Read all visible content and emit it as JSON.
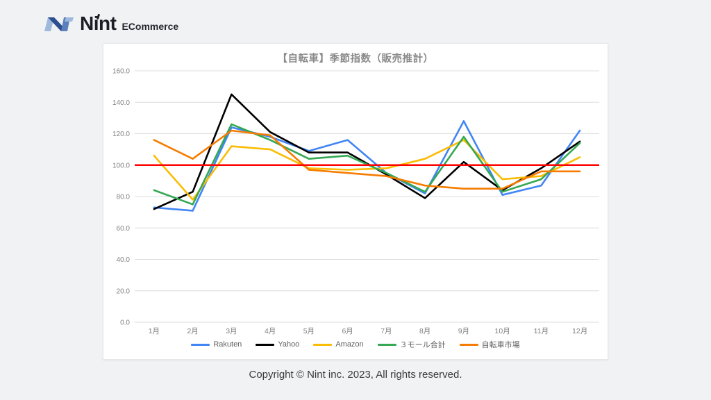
{
  "header": {
    "logo_text": "Nint",
    "logo_suffix": "ECommerce"
  },
  "footer": {
    "copyright": "Copyright © Nint inc. 2023, All rights reserved."
  },
  "colors": {
    "reference_line": "#FF0000",
    "gridline": "#DCDCDC",
    "axis_text": "#808080",
    "title_text": "#8A8A8A",
    "logo_dark_blue": "#2E4F8F",
    "logo_light_blue": "#9FB9DD",
    "logo_mid_blue": "#5B7FBC"
  },
  "chart_data": {
    "type": "line",
    "title": "【自転車】季節指数（販売推計）",
    "categories": [
      "1月",
      "2月",
      "3月",
      "4月",
      "5月",
      "6月",
      "7月",
      "8月",
      "9月",
      "10月",
      "11月",
      "12月"
    ],
    "series": [
      {
        "name": "Rakuten",
        "color": "#4285F4",
        "values": [
          73,
          71,
          124,
          118,
          109,
          116,
          95,
          82,
          128,
          81,
          87,
          122
        ]
      },
      {
        "name": "Yahoo",
        "color": "#000000",
        "values": [
          72,
          83,
          145,
          121,
          108,
          108,
          94,
          79,
          102,
          84,
          98,
          115
        ]
      },
      {
        "name": "Amazon",
        "color": "#FBBC04",
        "values": [
          106,
          78,
          112,
          110,
          98,
          97,
          98,
          104,
          116,
          91,
          93,
          105
        ]
      },
      {
        "name": "３モール合計",
        "color": "#34A853",
        "values": [
          84,
          75,
          126,
          116,
          104,
          106,
          95,
          83,
          118,
          83,
          91,
          114
        ]
      },
      {
        "name": "自転車市場",
        "color": "#F57C00",
        "values": [
          116,
          104,
          122,
          119,
          97,
          95,
          93,
          87,
          85,
          85,
          96,
          96
        ]
      }
    ],
    "ylim": [
      0,
      160
    ],
    "ytick_step": 20,
    "ytick_format": "one_decimal",
    "reference_line": 100,
    "grid": true,
    "legend_position": "bottom"
  }
}
